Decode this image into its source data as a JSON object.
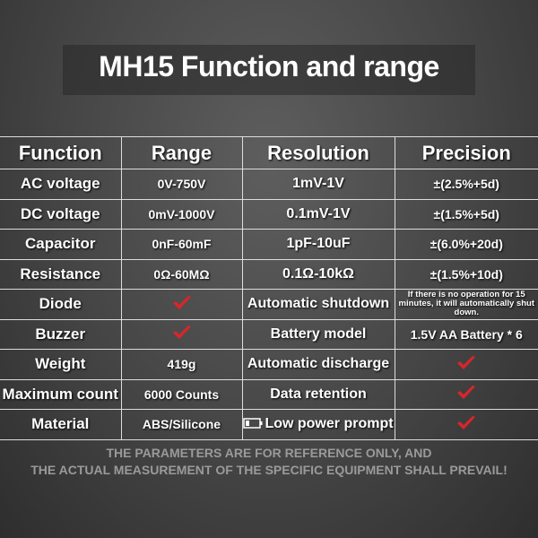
{
  "header": {
    "title": "MH15 Function and range"
  },
  "table": {
    "columns": [
      "Function",
      "Range",
      "Resolution",
      "Precision"
    ],
    "rows": [
      {
        "function": "AC voltage",
        "range": "0V-750V",
        "resolution": "1mV-1V",
        "precision": "±(2.5%+5d)"
      },
      {
        "function": "DC voltage",
        "range": "0mV-1000V",
        "resolution": "0.1mV-1V",
        "precision": "±(1.5%+5d)"
      },
      {
        "function": "Capacitor",
        "range": "0nF-60mF",
        "resolution": "1pF-10uF",
        "precision": "±(6.0%+20d)"
      },
      {
        "function": "Resistance",
        "range": "0Ω-60MΩ",
        "resolution": "0.1Ω-10kΩ",
        "precision": "±(1.5%+10d)"
      },
      {
        "function": "Diode",
        "resolution": "Automatic shutdown",
        "precision": "If there is no operation for 15 minutes, it will automatically shut down."
      },
      {
        "function": "Buzzer",
        "resolution": "Battery model",
        "precision": "1.5V AA Battery * 6"
      },
      {
        "function": "Weight",
        "range": "419g",
        "resolution": "Automatic discharge"
      },
      {
        "function": "Maximum count",
        "range": "6000 Counts",
        "resolution": "Data retention"
      },
      {
        "function": "Material",
        "range": "ABS/Silicone",
        "resolution": "Low power prompt"
      }
    ]
  },
  "footer": {
    "lines": [
      "THE PARAMETERS ARE FOR REFERENCE ONLY, AND",
      "THE ACTUAL MEASUREMENT OF THE SPECIFIC EQUIPMENT SHALL PREVAIL!"
    ]
  }
}
